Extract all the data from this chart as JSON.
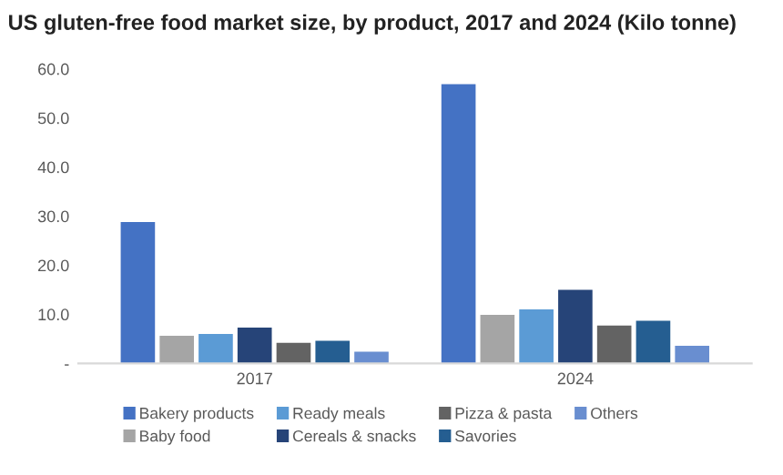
{
  "chart_data": {
    "type": "bar",
    "title": "US gluten-free food market size, by product, 2017 and 2024 (Kilo tonne)",
    "categories": [
      "2017",
      "2024"
    ],
    "series": [
      {
        "name": "Bakery products",
        "color": "#4472c4",
        "values": [
          28.8,
          56.9
        ]
      },
      {
        "name": "Baby food",
        "color": "#a5a5a5",
        "values": [
          5.6,
          9.9
        ]
      },
      {
        "name": "Ready meals",
        "color": "#5b9bd5",
        "values": [
          6.0,
          11.0
        ]
      },
      {
        "name": "Cereals & snacks",
        "color": "#264478",
        "values": [
          7.3,
          15.0
        ]
      },
      {
        "name": "Pizza & pasta",
        "color": "#636363",
        "values": [
          4.2,
          7.7
        ]
      },
      {
        "name": "Savories",
        "color": "#255e91",
        "values": [
          4.6,
          8.7
        ]
      },
      {
        "name": "Others",
        "color": "#698ed0",
        "values": [
          2.4,
          3.6
        ]
      }
    ],
    "ylim": [
      0,
      60
    ],
    "yticks": [
      {
        "value": 0,
        "label": "-"
      },
      {
        "value": 10,
        "label": "10.0"
      },
      {
        "value": 20,
        "label": "20.0"
      },
      {
        "value": 30,
        "label": "30.0"
      },
      {
        "value": 40,
        "label": "40.0"
      },
      {
        "value": 50,
        "label": "50.0"
      },
      {
        "value": 60,
        "label": "60.0"
      }
    ],
    "grid": false,
    "legend": "bottom"
  }
}
